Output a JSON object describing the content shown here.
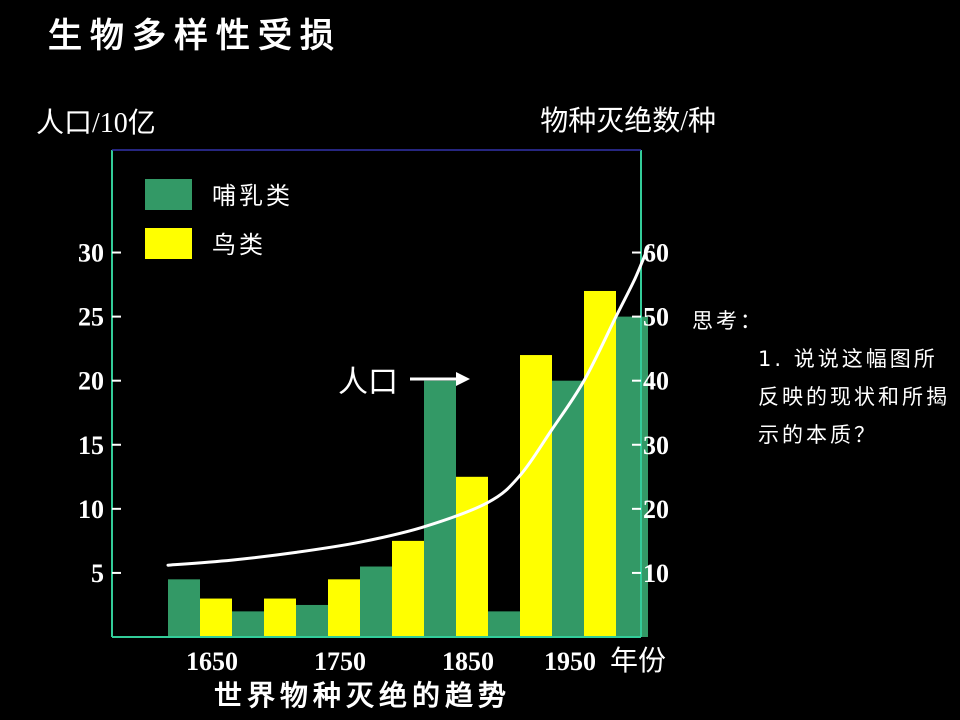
{
  "slide": {
    "title": "生物多样性受损",
    "subtitle": "世界物种灭绝的趋势"
  },
  "note": {
    "heading": "思考：",
    "question": "1. 说说这幅图所反映的现状和所揭示的本质？"
  },
  "colors": {
    "background": "#000000",
    "mammal": "#339966",
    "bird": "#ffff00",
    "axis": "#33cc99",
    "text": "#ffffff"
  },
  "chart_data": {
    "type": "bar",
    "xlabel": "年份",
    "ylabel_left": "人口/10亿",
    "ylabel_right": "物种灭绝数/种",
    "x_tick_labels": [
      "1650",
      "1750",
      "1850",
      "1950"
    ],
    "periods": 8,
    "left_axis": {
      "ylim": [
        0,
        38
      ],
      "ticks": [
        5,
        10,
        15,
        20,
        25,
        30
      ]
    },
    "right_axis": {
      "ylim": [
        0,
        76
      ],
      "ticks": [
        10,
        20,
        30,
        40,
        50,
        60
      ]
    },
    "series": [
      {
        "name": "哺乳类",
        "color": "#339966",
        "values": [
          9,
          4,
          5,
          11,
          40,
          4,
          40,
          50
        ]
      },
      {
        "name": "鸟类",
        "color": "#ffff00",
        "values": [
          6,
          6,
          9,
          15,
          25,
          44,
          54,
          0
        ]
      }
    ],
    "population_line": {
      "name": "人口",
      "x": [
        0,
        1,
        2,
        3,
        4,
        5,
        5.5,
        6,
        6.5,
        7,
        7.3,
        7.5
      ],
      "y": [
        5.6,
        6.0,
        6.6,
        7.4,
        8.6,
        10.5,
        12.6,
        16.2,
        20.0,
        25.0,
        28.0,
        30.4
      ]
    },
    "arrow_label": "人口",
    "legend_position": "top-left"
  }
}
